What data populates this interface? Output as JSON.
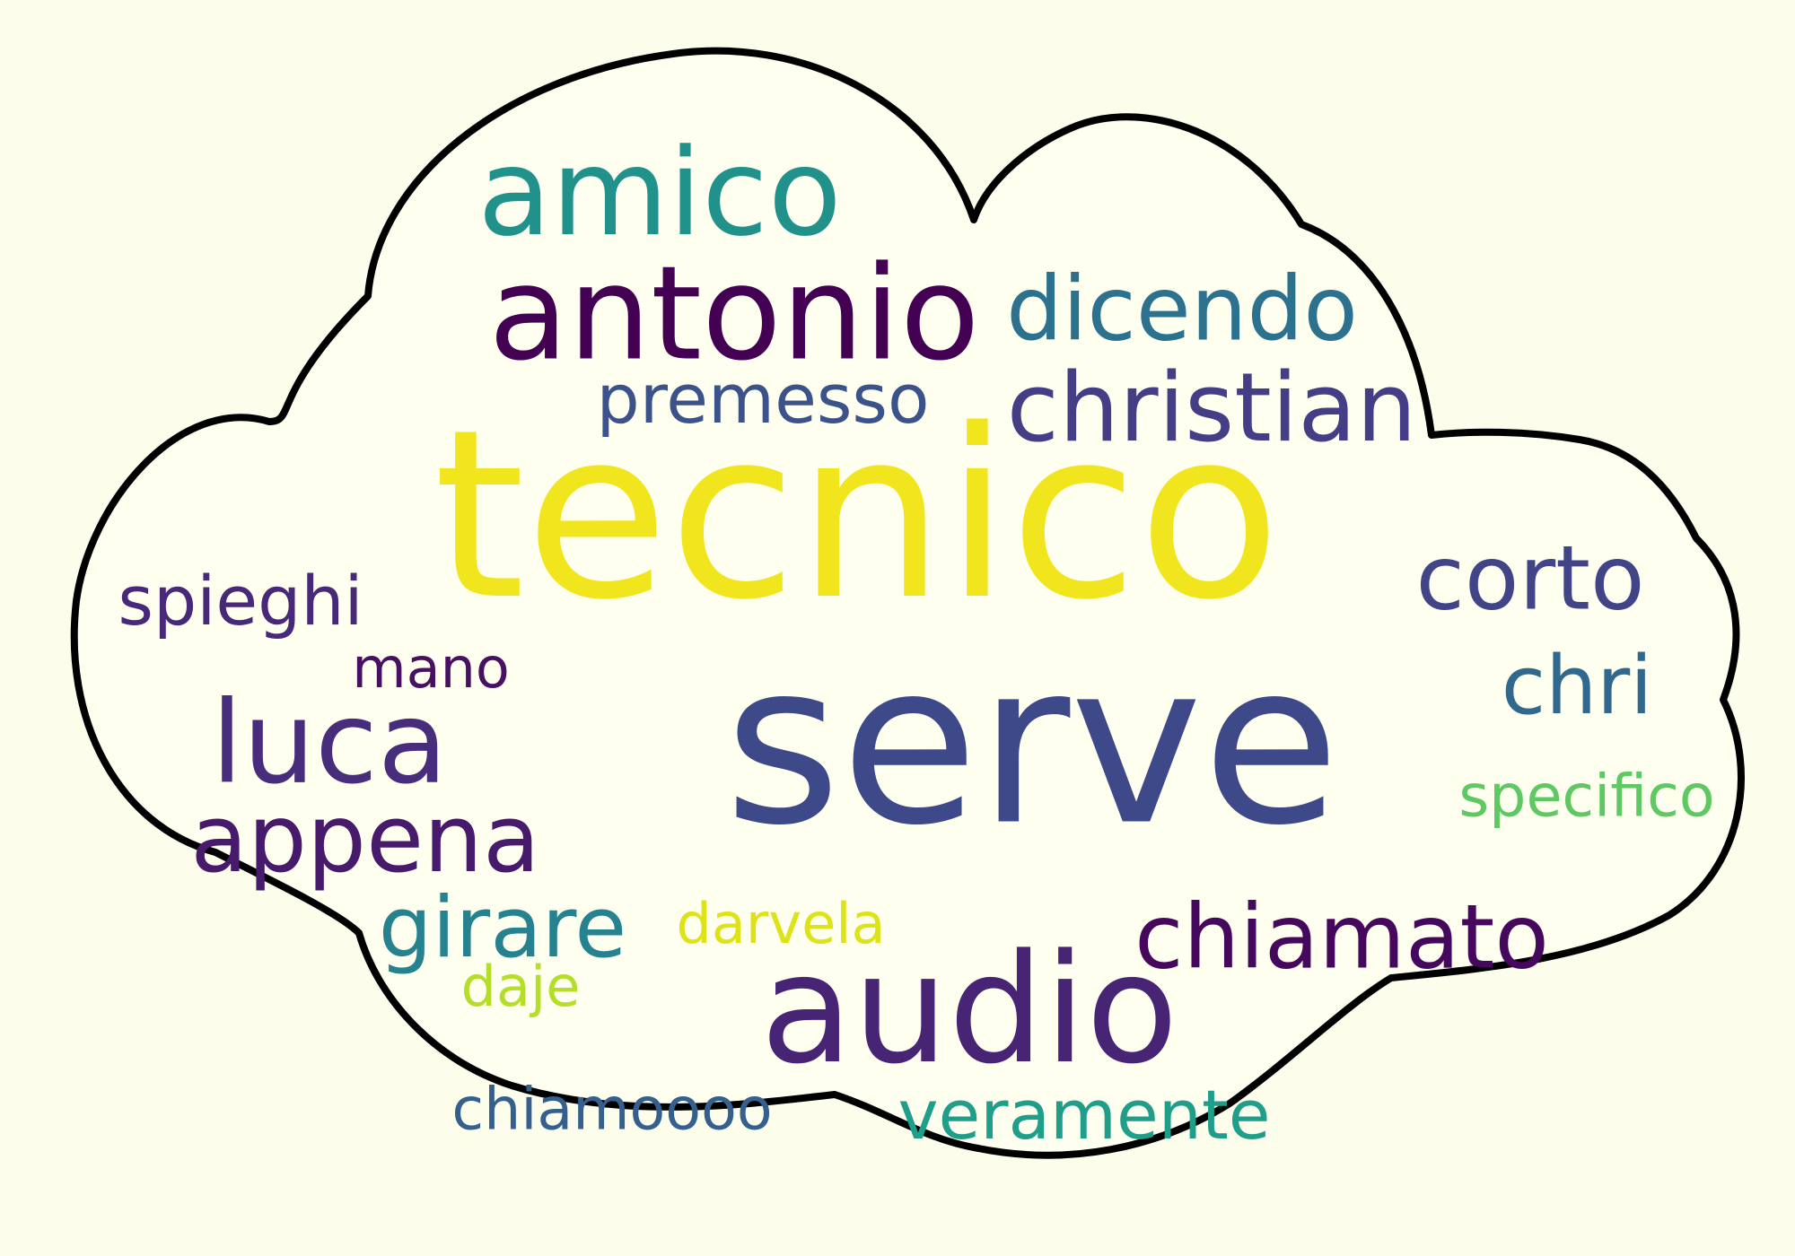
{
  "background_color": "#fdfdec",
  "cloud_outline_color": "#000000",
  "cloud_fill_color": "#fffff0",
  "words": [
    {
      "id": "tecnico",
      "text": "tecnico",
      "weight": 1.0,
      "color": "#f1e51d"
    },
    {
      "id": "serve",
      "text": "serve",
      "weight": 0.95,
      "color": "#3e4989"
    },
    {
      "id": "audio",
      "text": "audio",
      "weight": 0.6,
      "color": "#482475"
    },
    {
      "id": "antonio",
      "text": "antonio",
      "weight": 0.5,
      "color": "#440154"
    },
    {
      "id": "amico",
      "text": "amico",
      "weight": 0.45,
      "color": "#21918c"
    },
    {
      "id": "luca",
      "text": "luca",
      "weight": 0.42,
      "color": "#472d7b"
    },
    {
      "id": "christian",
      "text": "christian",
      "weight": 0.33,
      "color": "#433e85"
    },
    {
      "id": "dicendo",
      "text": "dicendo",
      "weight": 0.3,
      "color": "#2c728e"
    },
    {
      "id": "appena",
      "text": "appena",
      "weight": 0.32,
      "color": "#481a6c"
    },
    {
      "id": "corto",
      "text": "corto",
      "weight": 0.3,
      "color": "#414487"
    },
    {
      "id": "chiamato",
      "text": "chiamato",
      "weight": 0.3,
      "color": "#46085c"
    },
    {
      "id": "girare",
      "text": "girare",
      "weight": 0.28,
      "color": "#26828e"
    },
    {
      "id": "chri",
      "text": "chri",
      "weight": 0.26,
      "color": "#31688e"
    },
    {
      "id": "premesso",
      "text": "premesso",
      "weight": 0.2,
      "color": "#3b528b"
    },
    {
      "id": "spieghi",
      "text": "spieghi",
      "weight": 0.2,
      "color": "#482878"
    },
    {
      "id": "veramente",
      "text": "veramente",
      "weight": 0.2,
      "color": "#1f9e89"
    },
    {
      "id": "chiamoooo",
      "text": "chiamoooo",
      "weight": 0.15,
      "color": "#355f8d"
    },
    {
      "id": "specifico",
      "text": "specifico",
      "weight": 0.15,
      "color": "#5ec962"
    },
    {
      "id": "mano",
      "text": "mano",
      "weight": 0.14,
      "color": "#471063"
    },
    {
      "id": "darvela",
      "text": "darvela",
      "weight": 0.14,
      "color": "#dde318"
    },
    {
      "id": "daje",
      "text": "daje",
      "weight": 0.14,
      "color": "#b5de2b"
    }
  ]
}
